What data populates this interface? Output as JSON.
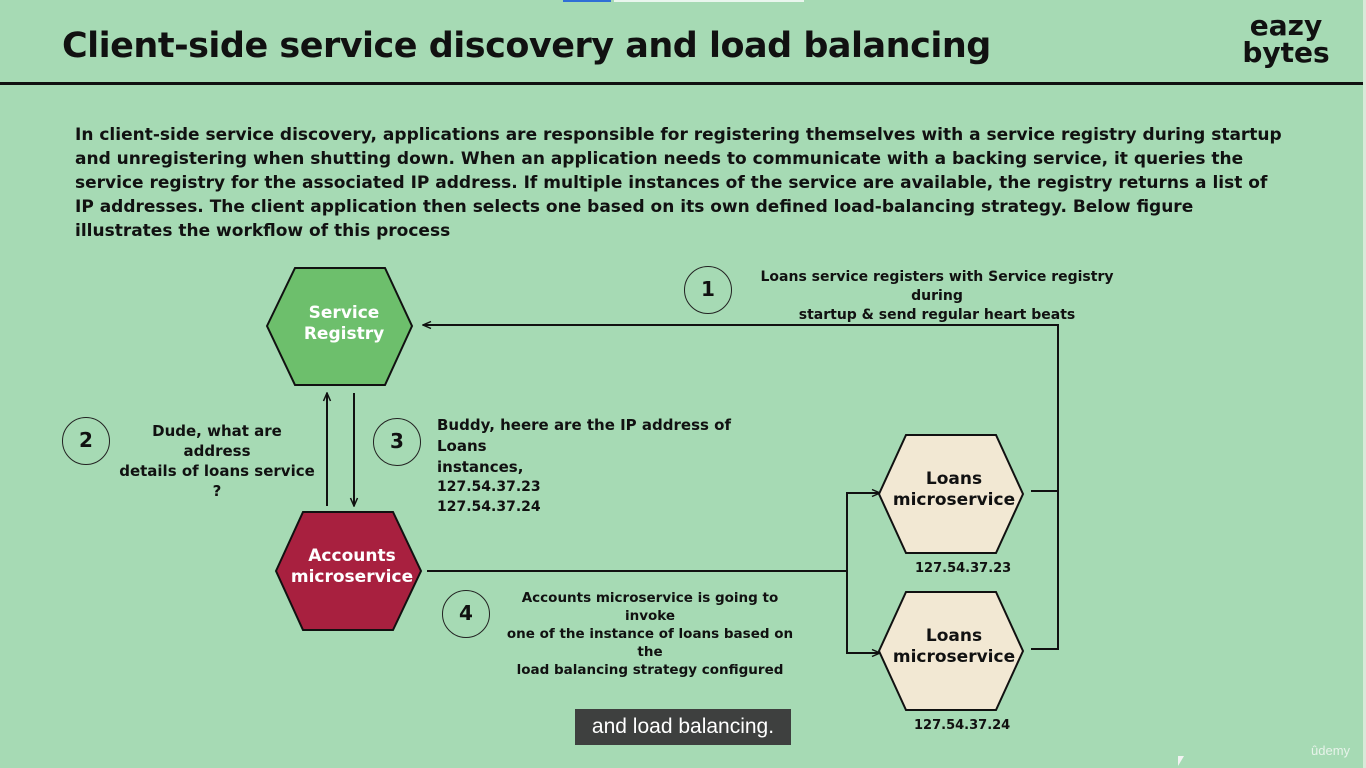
{
  "header": {
    "title": "Client-side service discovery and load balancing",
    "logo_line1": "eazy",
    "logo_line2": "bytes"
  },
  "intro": "In client-side service discovery, applications are responsible for registering themselves with a service registry during startup and unregistering when shutting down. When an application needs to communicate with a backing service, it queries the service registry for the associated IP address. If multiple instances of the service are available, the registry returns a list of IP addresses. The client application then selects one based on its own defined load-balancing strategy. Below figure illustrates the workflow of this process",
  "nodes": {
    "service_registry": {
      "line1": "Service",
      "line2": "Registry",
      "fill": "#6dbf6c",
      "text_color": "#ffffff"
    },
    "accounts": {
      "line1": "Accounts",
      "line2": "microservice",
      "fill": "#a8203f",
      "text_color": "#ffffff"
    },
    "loans_1": {
      "line1": "Loans",
      "line2": "microservice",
      "ip": "127.54.37.23",
      "fill": "#f2e8d3",
      "text_color": "#111111"
    },
    "loans_2": {
      "line1": "Loans",
      "line2": "microservice",
      "ip": "127.54.37.24",
      "fill": "#f2e8d3",
      "text_color": "#111111"
    }
  },
  "steps": {
    "step1": {
      "number": "1",
      "line1": "Loans service registers with Service registry during",
      "line2": "startup & send regular heart beats"
    },
    "step2": {
      "number": "2",
      "line1": "Dude, what are address",
      "line2": "details of loans service ?"
    },
    "step3": {
      "number": "3",
      "line1": "Buddy, heere are the IP address of Loans",
      "line2": "instances,",
      "ip1": "127.54.37.23",
      "ip2": "127.54.37.24"
    },
    "step4": {
      "number": "4",
      "line1": "Accounts microservice is going to invoke",
      "line2": "one of the instance of loans based on the",
      "line3": "load balancing strategy configured"
    }
  },
  "caption": "and load balancing.",
  "watermark": "ûdemy"
}
